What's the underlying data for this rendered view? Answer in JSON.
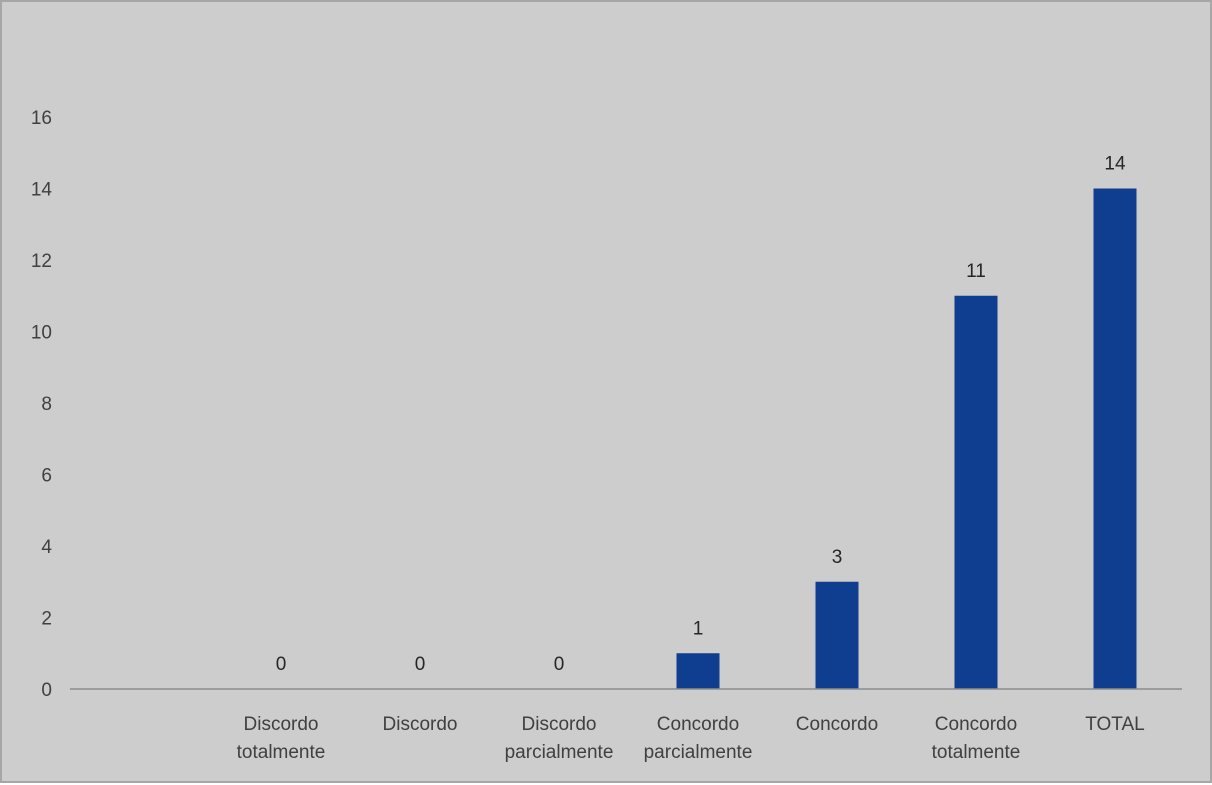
{
  "chart_data": {
    "type": "bar",
    "title": "",
    "xlabel": "",
    "ylabel": "",
    "ylim": [
      0,
      16
    ],
    "yticks": [
      0,
      2,
      4,
      6,
      8,
      10,
      12,
      14,
      16
    ],
    "grid": false,
    "legend": "none",
    "categories": [
      [
        "Discordo",
        "totalmente"
      ],
      [
        "Discordo"
      ],
      [
        "Discordo",
        "parcialmente"
      ],
      [
        "Concordo",
        "parcialmente"
      ],
      [
        "Concordo"
      ],
      [
        "Concordo",
        "totalmente"
      ],
      [
        "TOTAL"
      ]
    ],
    "values": [
      0,
      0,
      0,
      1,
      3,
      11,
      14
    ],
    "data_labels": [
      "0",
      "0",
      "0",
      "1",
      "3",
      "11",
      "14"
    ],
    "colors": {
      "bar": "#0f3d8f",
      "background": "#cdcdcd",
      "axis": "#8c8c8c",
      "border": "#a6a6a6"
    }
  }
}
